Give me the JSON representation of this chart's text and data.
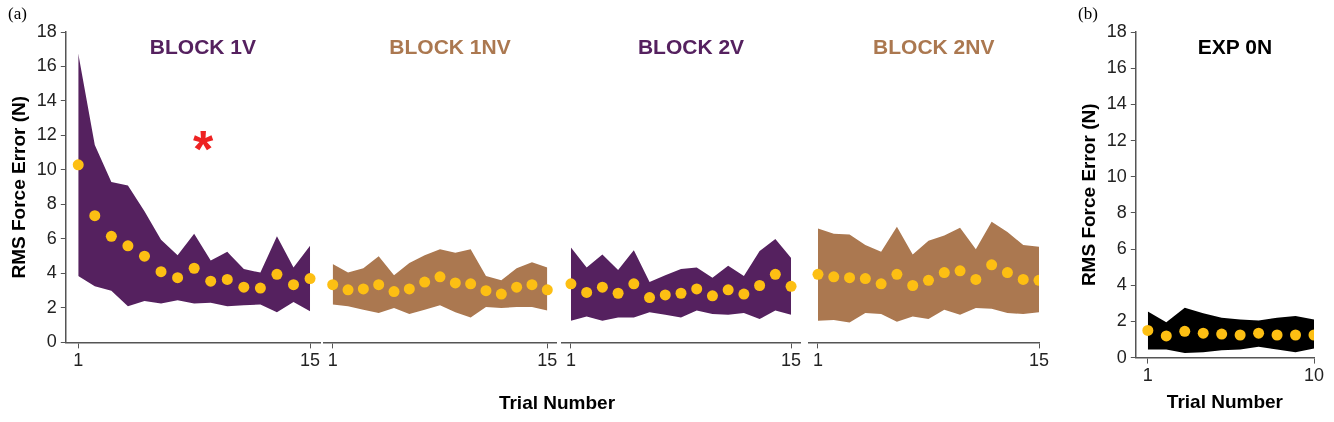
{
  "chart_data": [
    {
      "type": "scatter",
      "ylabel": "RMS Force Error (N)",
      "xlim": [
        0.25,
        15.6
      ],
      "ylim": [
        0,
        18
      ],
      "yticks": [
        0,
        2,
        4,
        6,
        8,
        10,
        12,
        14,
        16,
        18
      ],
      "xticks": [
        1,
        15
      ],
      "grid": false,
      "legend": false,
      "marker": "circle",
      "annotations": [
        "(a)",
        "*"
      ],
      "series": [
        {
          "name": "BLOCK 1V",
          "color": "#55215f",
          "colors": [
            "#fdbf13",
            "#fdbf13",
            "#fdbf13",
            "#fdbf13",
            "#fdbf13",
            "#fdbf13",
            "#fdbf13",
            "#fdbf13",
            "#fdbf13",
            "#fdbf13",
            "#fdbf13",
            "#fdbf13",
            "#fdbf13",
            "#fdbf13",
            "#fdbf13"
          ],
          "x": [
            1,
            2,
            3,
            4,
            5,
            6,
            7,
            8,
            9,
            10,
            11,
            12,
            13,
            14,
            15
          ],
          "values": [
            10.3,
            7.35,
            6.15,
            5.6,
            5.0,
            4.1,
            3.75,
            4.3,
            3.55,
            3.65,
            3.2,
            3.15,
            3.95,
            3.35,
            3.7
          ],
          "lower": [
            3.85,
            3.25,
            3.0,
            2.1,
            2.4,
            2.25,
            2.45,
            2.25,
            2.3,
            2.1,
            2.15,
            2.2,
            1.75,
            2.35,
            1.8
          ],
          "upper": [
            16.75,
            11.45,
            9.3,
            9.1,
            7.6,
            5.95,
            5.05,
            6.3,
            4.75,
            5.25,
            4.25,
            4.05,
            6.15,
            4.35,
            5.6
          ]
        }
      ]
    },
    {
      "type": "scatter",
      "xlabel": "Trial Number",
      "xlim": [
        0.4,
        15.6
      ],
      "ylim": [
        0,
        18
      ],
      "xticks": [
        1,
        15
      ],
      "grid": false,
      "legend": false,
      "marker": "circle",
      "tick_labels": "x",
      "series": [
        {
          "name": "BLOCK 1NV",
          "color": "#ab7850",
          "colors": [
            "#fdbf13",
            "#fdbf13",
            "#fdbf13",
            "#fdbf13",
            "#fdbf13",
            "#fdbf13",
            "#fdbf13",
            "#fdbf13",
            "#fdbf13",
            "#fdbf13",
            "#fdbf13",
            "#fdbf13",
            "#fdbf13",
            "#fdbf13",
            "#fdbf13"
          ],
          "x": [
            1,
            2,
            3,
            4,
            5,
            6,
            7,
            8,
            9,
            10,
            11,
            12,
            13,
            14,
            15
          ],
          "values": [
            3.35,
            3.05,
            3.1,
            3.35,
            2.95,
            3.1,
            3.5,
            3.8,
            3.45,
            3.4,
            3.0,
            2.8,
            3.2,
            3.35,
            3.05
          ],
          "lower": [
            2.2,
            2.1,
            1.9,
            1.7,
            2.0,
            1.65,
            1.9,
            2.15,
            1.75,
            1.45,
            2.05,
            2.0,
            2.05,
            2.05,
            1.85
          ],
          "upper": [
            4.55,
            4.05,
            4.3,
            5.0,
            3.9,
            4.6,
            5.05,
            5.4,
            5.2,
            5.4,
            3.85,
            3.6,
            4.3,
            4.65,
            4.35
          ]
        }
      ]
    },
    {
      "type": "scatter",
      "xlim": [
        0.4,
        15.6
      ],
      "ylim": [
        0,
        18
      ],
      "xticks": [
        1,
        15
      ],
      "grid": false,
      "legend": false,
      "marker": "circle",
      "tick_labels": "x",
      "series": [
        {
          "name": "BLOCK 2V",
          "color": "#55215f",
          "colors": [
            "#fdbf13",
            "#fdbf13",
            "#fdbf13",
            "#fdbf13",
            "#fdbf13",
            "#fdbf13",
            "#fdbf13",
            "#fdbf13",
            "#fdbf13",
            "#fdbf13",
            "#fdbf13",
            "#fdbf13",
            "#fdbf13",
            "#fdbf13",
            "#fdbf13"
          ],
          "x": [
            1,
            2,
            3,
            4,
            5,
            6,
            7,
            8,
            9,
            10,
            11,
            12,
            13,
            14,
            15
          ],
          "values": [
            3.4,
            2.9,
            3.2,
            2.85,
            3.4,
            2.6,
            2.75,
            2.85,
            3.1,
            2.7,
            3.05,
            2.8,
            3.3,
            3.95,
            3.25
          ],
          "lower": [
            1.25,
            1.5,
            1.25,
            1.45,
            1.45,
            1.75,
            1.6,
            1.45,
            1.85,
            1.65,
            1.6,
            1.7,
            1.35,
            1.85,
            1.6
          ],
          "upper": [
            5.5,
            4.35,
            5.1,
            4.2,
            5.35,
            3.5,
            3.9,
            4.25,
            4.35,
            3.75,
            4.45,
            3.85,
            5.3,
            6.0,
            4.9
          ]
        }
      ]
    },
    {
      "type": "scatter",
      "xlim": [
        0.4,
        15
      ],
      "ylim": [
        0,
        18
      ],
      "xticks": [
        1,
        15
      ],
      "grid": false,
      "legend": false,
      "marker": "circle",
      "tick_labels": "x",
      "series": [
        {
          "name": "BLOCK 2NV",
          "color": "#ab7850",
          "colors": [
            "#fdbf13",
            "#fdbf13",
            "#fdbf13",
            "#fdbf13",
            "#fdbf13",
            "#fdbf13",
            "#fdbf13",
            "#fdbf13",
            "#fdbf13",
            "#fdbf13",
            "#fdbf13",
            "#fdbf13",
            "#fdbf13",
            "#fdbf13",
            "#fdbf13"
          ],
          "x": [
            1,
            2,
            3,
            4,
            5,
            6,
            7,
            8,
            9,
            10,
            11,
            12,
            13,
            14,
            15
          ],
          "values": [
            3.95,
            3.8,
            3.75,
            3.7,
            3.4,
            3.95,
            3.3,
            3.6,
            4.05,
            4.15,
            3.65,
            4.5,
            4.05,
            3.65,
            3.6
          ],
          "lower": [
            1.25,
            1.3,
            1.15,
            1.7,
            1.65,
            1.2,
            1.5,
            1.35,
            1.9,
            1.6,
            2.0,
            1.95,
            1.7,
            1.65,
            1.75
          ],
          "upper": [
            6.6,
            6.3,
            6.25,
            5.65,
            5.25,
            6.7,
            5.1,
            5.9,
            6.2,
            6.65,
            5.4,
            7.0,
            6.4,
            5.65,
            5.55
          ]
        }
      ]
    },
    {
      "type": "scatter",
      "xlabel": "Trial Number",
      "ylabel": "RMS Force Error (N)",
      "xlim": [
        0.35,
        10
      ],
      "ylim": [
        0,
        18
      ],
      "yticks": [
        0,
        2,
        4,
        6,
        8,
        10,
        12,
        14,
        16,
        18
      ],
      "xticks": [
        1,
        10
      ],
      "grid": false,
      "legend": false,
      "marker": "circle",
      "annotations": [
        "(b)"
      ],
      "series": [
        {
          "name": "EXP 0N",
          "color": "#000000",
          "colors": [
            "#fdbf13",
            "#fdbf13",
            "#fdbf13",
            "#fdbf13",
            "#fdbf13",
            "#fdbf13",
            "#fdbf13",
            "#fdbf13",
            "#fdbf13",
            "#fdbf13"
          ],
          "x": [
            1,
            2,
            3,
            4,
            5,
            6,
            7,
            8,
            9,
            10
          ],
          "values": [
            1.5,
            1.2,
            1.45,
            1.35,
            1.3,
            1.25,
            1.35,
            1.25,
            1.25,
            1.25
          ],
          "lower": [
            0.45,
            0.45,
            0.25,
            0.3,
            0.4,
            0.45,
            0.6,
            0.45,
            0.3,
            0.5
          ],
          "upper": [
            2.55,
            1.95,
            2.75,
            2.45,
            2.2,
            2.1,
            2.05,
            2.2,
            2.3,
            2.1
          ]
        }
      ]
    }
  ]
}
